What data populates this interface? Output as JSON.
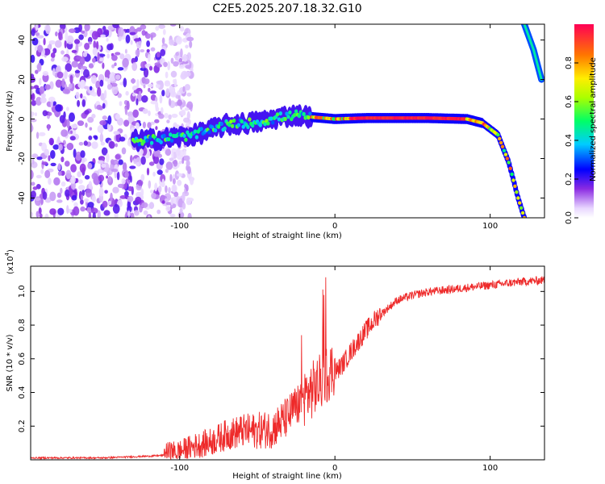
{
  "title": "C2E5.2025.207.18.32.G10",
  "colors": {
    "snr_line": "#ee2a2a",
    "axis": "#000000",
    "background": "#ffffff"
  },
  "chart_data": [
    {
      "type": "heatmap",
      "title": "C2E5.2025.207.18.32.G10",
      "xlabel": "Height of straight line (km)",
      "ylabel": "Frequency (Hz)",
      "xlim": [
        -196,
        135
      ],
      "ylim": [
        -50,
        48
      ],
      "x_ticks": [
        -100,
        0,
        100
      ],
      "x_tick_labels": [
        "-100",
        "0",
        "100"
      ],
      "y_ticks": [
        -40,
        -20,
        0,
        20,
        40
      ],
      "y_tick_labels": [
        "-40",
        "-20",
        "0",
        "20",
        "40"
      ],
      "colorbar": {
        "label": "Normalized spectral amplitude",
        "range": [
          0,
          1
        ],
        "ticks": [
          0.0,
          0.2,
          0.4,
          0.6,
          0.8
        ],
        "tick_labels": [
          "0.0",
          "0.2",
          "0.4",
          "0.6",
          "0.8"
        ],
        "colormap": "rainbow"
      },
      "ridge": {
        "description_points": [
          {
            "x": -130,
            "y": -11
          },
          {
            "x": -110,
            "y": -10
          },
          {
            "x": -90,
            "y": -8
          },
          {
            "x": -70,
            "y": -3
          },
          {
            "x": -55,
            "y": -2
          },
          {
            "x": -45,
            "y": -1
          },
          {
            "x": -35,
            "y": 1
          },
          {
            "x": -25,
            "y": 2
          },
          {
            "x": -15,
            "y": 1
          },
          {
            "x": 0,
            "y": 0
          },
          {
            "x": 20,
            "y": 0.5
          },
          {
            "x": 60,
            "y": 0.5
          },
          {
            "x": 85,
            "y": 0
          },
          {
            "x": 95,
            "y": -2
          },
          {
            "x": 105,
            "y": -8
          },
          {
            "x": 112,
            "y": -22
          },
          {
            "x": 118,
            "y": -40
          },
          {
            "x": 122,
            "y": -50
          }
        ],
        "upper_branch": [
          {
            "x": 122,
            "y": 48
          },
          {
            "x": 128,
            "y": 35
          },
          {
            "x": 133,
            "y": 20
          }
        ]
      },
      "noise_region_x": [
        -196,
        -100
      ]
    },
    {
      "type": "line",
      "xlabel": "Height of straight line (km)",
      "ylabel": "SNR (10 * v/v)",
      "y_scale_label": "(x10",
      "y_scale_exponent": "4",
      "xlim": [
        -196,
        135
      ],
      "ylim": [
        0,
        1.15
      ],
      "x_ticks": [
        -100,
        0,
        100
      ],
      "x_tick_labels": [
        "-100",
        "0",
        "100"
      ],
      "y_ticks": [
        0.2,
        0.4,
        0.6,
        0.8,
        1.0
      ],
      "y_tick_labels": [
        "0.2",
        "0.4",
        "0.6",
        "0.8",
        "1.0"
      ],
      "series": [
        {
          "x": [
            -196,
            -150,
            -120,
            -100,
            -90,
            -80,
            -70,
            -60,
            -50,
            -40,
            -30,
            -25,
            -20,
            -15,
            -10,
            -5,
            0,
            5,
            10,
            20,
            30,
            40,
            50,
            60,
            80,
            100,
            120,
            135
          ],
          "values": [
            0.01,
            0.01,
            0.02,
            0.03,
            0.06,
            0.08,
            0.12,
            0.14,
            0.14,
            0.15,
            0.22,
            0.28,
            0.32,
            0.36,
            0.4,
            0.46,
            0.5,
            0.55,
            0.62,
            0.75,
            0.86,
            0.94,
            0.97,
            0.99,
            1.01,
            1.03,
            1.05,
            1.06
          ]
        }
      ]
    }
  ]
}
